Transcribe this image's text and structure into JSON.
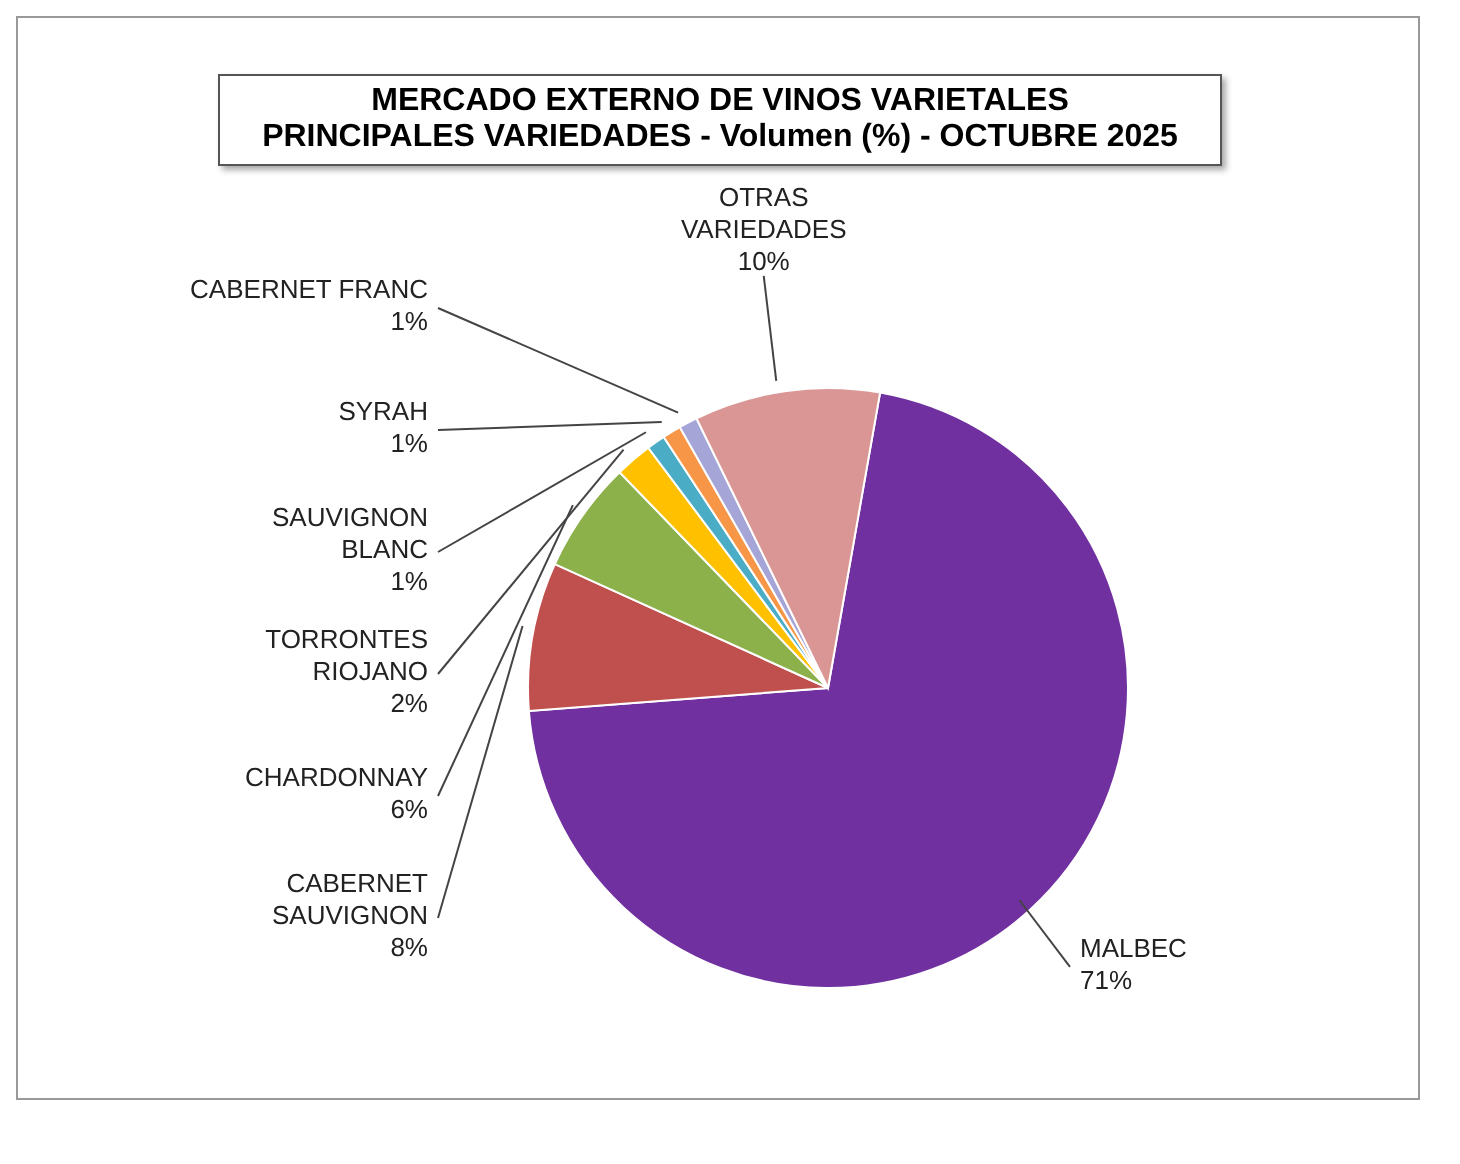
{
  "chart_data": {
    "type": "pie",
    "title": "MERCADO EXTERNO DE VINOS VARIETALES",
    "subtitle": "PRINCIPALES VARIEDADES - Volumen (%) - OCTUBRE 2025",
    "categories": [
      "MALBEC",
      "CABERNET SAUVIGNON",
      "CHARDONNAY",
      "TORRONTES RIOJANO",
      "SAUVIGNON BLANC",
      "SYRAH",
      "CABERNET FRANC",
      "OTRAS VARIEDADES"
    ],
    "values": [
      71,
      8,
      6,
      2,
      1,
      1,
      1,
      10
    ],
    "value_labels": [
      "71%",
      "8%",
      "6%",
      "2%",
      "1%",
      "1%",
      "1%",
      "10%"
    ],
    "colors": [
      "#7030a0",
      "#c0504d",
      "#8cb04a",
      "#ffc000",
      "#4bacc6",
      "#f79646",
      "#a5a5d8",
      "#d99694"
    ]
  }
}
